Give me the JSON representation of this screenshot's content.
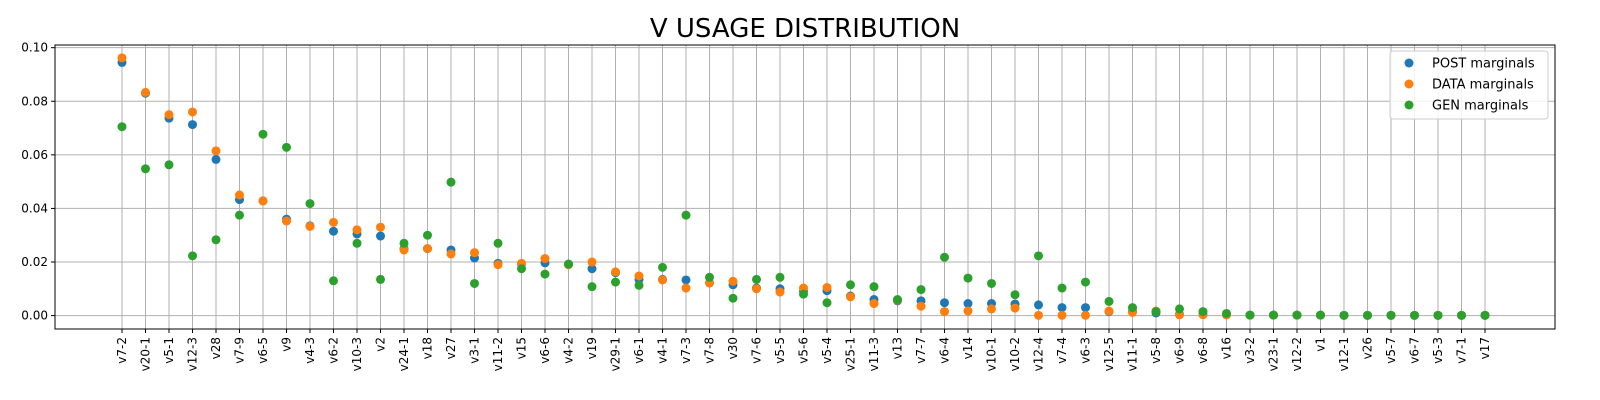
{
  "chart_data": {
    "type": "scatter",
    "title": "V USAGE DISTRIBUTION",
    "xlabel": "",
    "ylabel": "",
    "ylim": [
      -0.005,
      0.101
    ],
    "yticks": [
      "0.00",
      "0.02",
      "0.04",
      "0.06",
      "0.08",
      "0.10"
    ],
    "ytick_values": [
      0,
      0.02,
      0.04,
      0.06,
      0.08,
      0.1
    ],
    "grid": true,
    "legend_position": "top-right",
    "categories": [
      "v7-2",
      "v20-1",
      "v5-1",
      "v12-3",
      "v28",
      "v7-9",
      "v6-5",
      "v9",
      "v4-3",
      "v6-2",
      "v10-3",
      "v2",
      "v24-1",
      "v18",
      "v27",
      "v3-1",
      "v11-2",
      "v15",
      "v6-6",
      "v4-2",
      "v19",
      "v29-1",
      "v6-1",
      "v4-1",
      "v7-3",
      "v7-8",
      "v30",
      "v7-6",
      "v5-5",
      "v5-6",
      "v5-4",
      "v25-1",
      "v11-3",
      "v13",
      "v7-7",
      "v6-4",
      "v14",
      "v10-1",
      "v10-2",
      "v12-4",
      "v7-4",
      "v6-3",
      "v12-5",
      "v11-1",
      "v5-8",
      "v6-9",
      "v6-8",
      "v16",
      "v3-2",
      "v23-1",
      "v12-2",
      "v1",
      "v12-1",
      "v26",
      "v5-7",
      "v6-7",
      "v5-3",
      "v7-1",
      "v17"
    ],
    "series": [
      {
        "name": "POST marginals",
        "color": "#1f77b4",
        "values": [
          0.0945,
          0.083,
          0.0737,
          0.0713,
          0.0583,
          0.0433,
          0.0428,
          0.036,
          0.0335,
          0.0315,
          0.0305,
          0.0297,
          0.025,
          0.025,
          0.0245,
          0.0215,
          0.0195,
          0.0193,
          0.0197,
          0.0192,
          0.0175,
          0.016,
          0.0135,
          0.0135,
          0.0133,
          0.0122,
          0.0115,
          0.0103,
          0.01,
          0.0092,
          0.0093,
          0.0073,
          0.006,
          0.0055,
          0.0055,
          0.0048,
          0.0045,
          0.0045,
          0.0043,
          0.004,
          0.003,
          0.003,
          0.0015,
          0.0015,
          0.001,
          0.0005,
          0.0005,
          0.0003,
          0.0002,
          0.0002,
          0.0002,
          0.0002,
          0.0001,
          0.0001,
          0.0001,
          0.0001,
          0.0001,
          0.0001,
          0.0001
        ]
      },
      {
        "name": "DATA marginals",
        "color": "#ff7f0e",
        "values": [
          0.0962,
          0.0833,
          0.075,
          0.076,
          0.0615,
          0.045,
          0.0428,
          0.0353,
          0.0333,
          0.0348,
          0.032,
          0.033,
          0.0245,
          0.025,
          0.023,
          0.0235,
          0.019,
          0.0195,
          0.0213,
          0.019,
          0.02,
          0.0163,
          0.0148,
          0.0133,
          0.0103,
          0.0122,
          0.0128,
          0.01,
          0.0088,
          0.0103,
          0.0105,
          0.007,
          0.0045,
          0.0058,
          0.0035,
          0.0015,
          0.0017,
          0.0025,
          0.0028,
          0.0001,
          0.0001,
          0.0001,
          0.0017,
          0.0012,
          0.0017,
          0.0003,
          0.0003,
          0.0003,
          0.0002,
          0.0002,
          0.0002,
          0.0002,
          0.0001,
          0.0001,
          0.0001,
          0.0001,
          0.0001,
          0.0001,
          0.0001
        ]
      },
      {
        "name": "GEN marginals",
        "color": "#2ca02c",
        "values": [
          0.0705,
          0.0548,
          0.0563,
          0.0223,
          0.0283,
          0.0375,
          0.0677,
          0.0628,
          0.0418,
          0.013,
          0.027,
          0.0135,
          0.027,
          0.03,
          0.0498,
          0.012,
          0.027,
          0.0175,
          0.0155,
          0.0192,
          0.0108,
          0.0125,
          0.0113,
          0.018,
          0.0375,
          0.0143,
          0.0065,
          0.0135,
          0.0143,
          0.008,
          0.0048,
          0.0115,
          0.0108,
          0.006,
          0.0097,
          0.0218,
          0.014,
          0.012,
          0.0078,
          0.0223,
          0.0103,
          0.0125,
          0.0053,
          0.003,
          0.0015,
          0.0025,
          0.0015,
          0.0008,
          0.0002,
          0.0002,
          0.0002,
          0.0002,
          0.0001,
          0.0001,
          0.0001,
          0.0001,
          0.0001,
          0.0001,
          0.0001
        ]
      }
    ]
  }
}
